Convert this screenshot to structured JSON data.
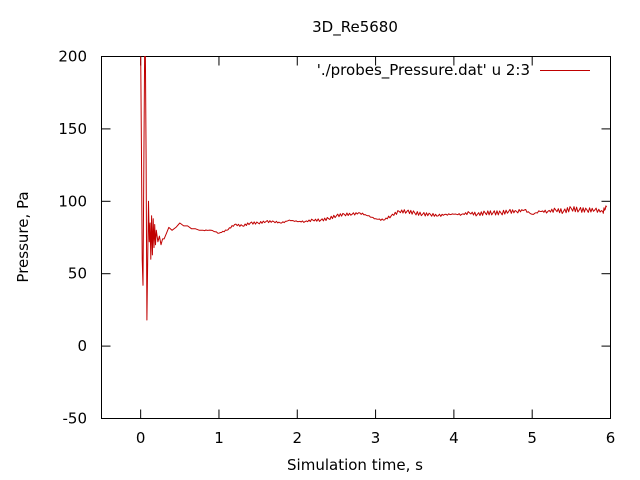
{
  "chart_data": {
    "type": "line",
    "title": "3D_Re5680",
    "xlabel": "Simulation time, s",
    "ylabel": "Pressure, Pa",
    "xlim": [
      -0.5,
      6
    ],
    "ylim": [
      -50,
      200
    ],
    "xticks": [
      0,
      1,
      2,
      3,
      4,
      5,
      6
    ],
    "yticks": [
      -50,
      0,
      50,
      100,
      150,
      200
    ],
    "x_tick_labels": [
      "0",
      "1",
      "2",
      "3",
      "4",
      "5",
      "6"
    ],
    "y_tick_labels": [
      "-50",
      "0",
      "50",
      "100",
      "150",
      "200"
    ],
    "grid": false,
    "legend_position": "top-right",
    "colors": {
      "series": "#c00000",
      "axes": "#000000"
    },
    "series": [
      {
        "name": "'./probes_Pressure.dat' u 2:3",
        "x": [
          0,
          0.01,
          0.02,
          0.03,
          0.05,
          0.06,
          0.07,
          0.08,
          0.09,
          0.1,
          0.11,
          0.12,
          0.13,
          0.14,
          0.15,
          0.16,
          0.17,
          0.18,
          0.19,
          0.2,
          0.22,
          0.24,
          0.26,
          0.28,
          0.3,
          0.33,
          0.36,
          0.4,
          0.45,
          0.5,
          0.55,
          0.6,
          0.65,
          0.7,
          0.75,
          0.8,
          0.9,
          1.0,
          1.1,
          1.2,
          1.3,
          1.4,
          1.5,
          1.6,
          1.7,
          1.8,
          1.9,
          2.0,
          2.1,
          2.2,
          2.3,
          2.4,
          2.5,
          2.6,
          2.7,
          2.8,
          2.9,
          3.0,
          3.1,
          3.2,
          3.3,
          3.4,
          3.5,
          3.6,
          3.7,
          3.8,
          3.9,
          4.0,
          4.1,
          4.2,
          4.3,
          4.4,
          4.5,
          4.6,
          4.7,
          4.8,
          4.9,
          5.0,
          5.1,
          5.2,
          5.3,
          5.4,
          5.5,
          5.6,
          5.7,
          5.8,
          5.9,
          5.95
        ],
        "y": [
          200,
          140,
          60,
          42,
          200,
          200,
          130,
          18,
          60,
          100,
          72,
          85,
          60,
          90,
          63,
          88,
          68,
          84,
          70,
          80,
          72,
          76,
          70,
          74,
          74,
          78,
          82,
          80,
          82,
          85,
          83,
          83,
          81,
          81,
          80,
          80,
          80,
          78,
          80,
          84,
          83,
          85,
          85,
          86,
          86,
          85,
          87,
          86,
          86,
          87,
          87,
          88,
          90,
          91,
          91,
          92,
          90,
          88,
          87,
          90,
          93,
          93,
          92,
          91,
          91,
          90,
          91,
          91,
          91,
          92,
          91,
          92,
          92,
          92,
          93,
          93,
          94,
          91,
          93,
          93,
          94,
          93,
          95,
          94,
          94,
          94,
          93,
          96
        ]
      }
    ]
  }
}
